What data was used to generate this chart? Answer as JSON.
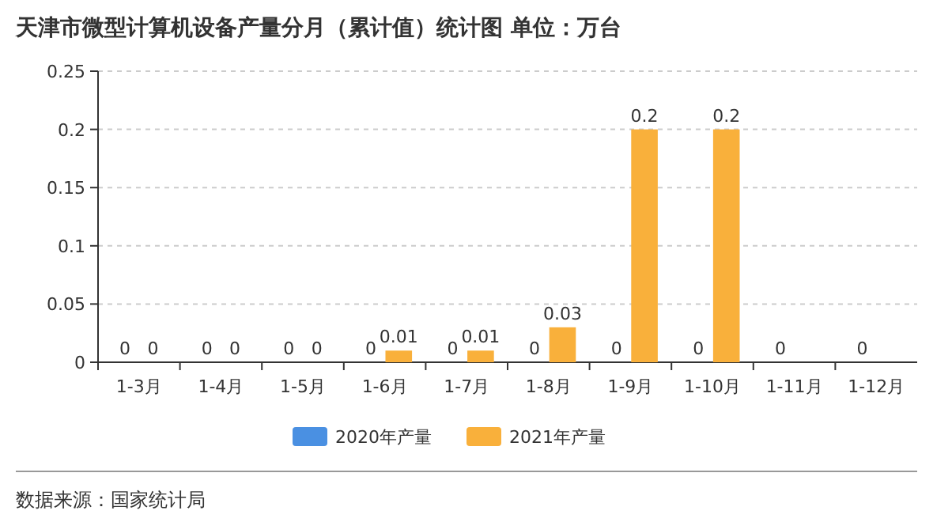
{
  "chart_data": {
    "type": "bar",
    "title": "天津市微型计算机设备产量分月（累计值）统计图 单位：万台",
    "categories": [
      "1-3月",
      "1-4月",
      "1-5月",
      "1-6月",
      "1-7月",
      "1-8月",
      "1-9月",
      "1-10月",
      "1-11月",
      "1-12月"
    ],
    "series": [
      {
        "name": "2020年产量",
        "color": "#4a90e2",
        "values": [
          0,
          0,
          0,
          0,
          0,
          0,
          0,
          0,
          0,
          0
        ]
      },
      {
        "name": "2021年产量",
        "color": "#f9b03b",
        "values": [
          0,
          0,
          0,
          0.01,
          0.01,
          0.03,
          0.2,
          0.2,
          null,
          null
        ]
      }
    ],
    "ylim": [
      0,
      0.25
    ],
    "yticks": [
      0,
      0.05,
      0.1,
      0.15,
      0.2,
      0.25
    ],
    "grid": "y",
    "legend": "bottom",
    "data_labels": true,
    "annotations": [
      "数据来源：国家统计局"
    ]
  }
}
